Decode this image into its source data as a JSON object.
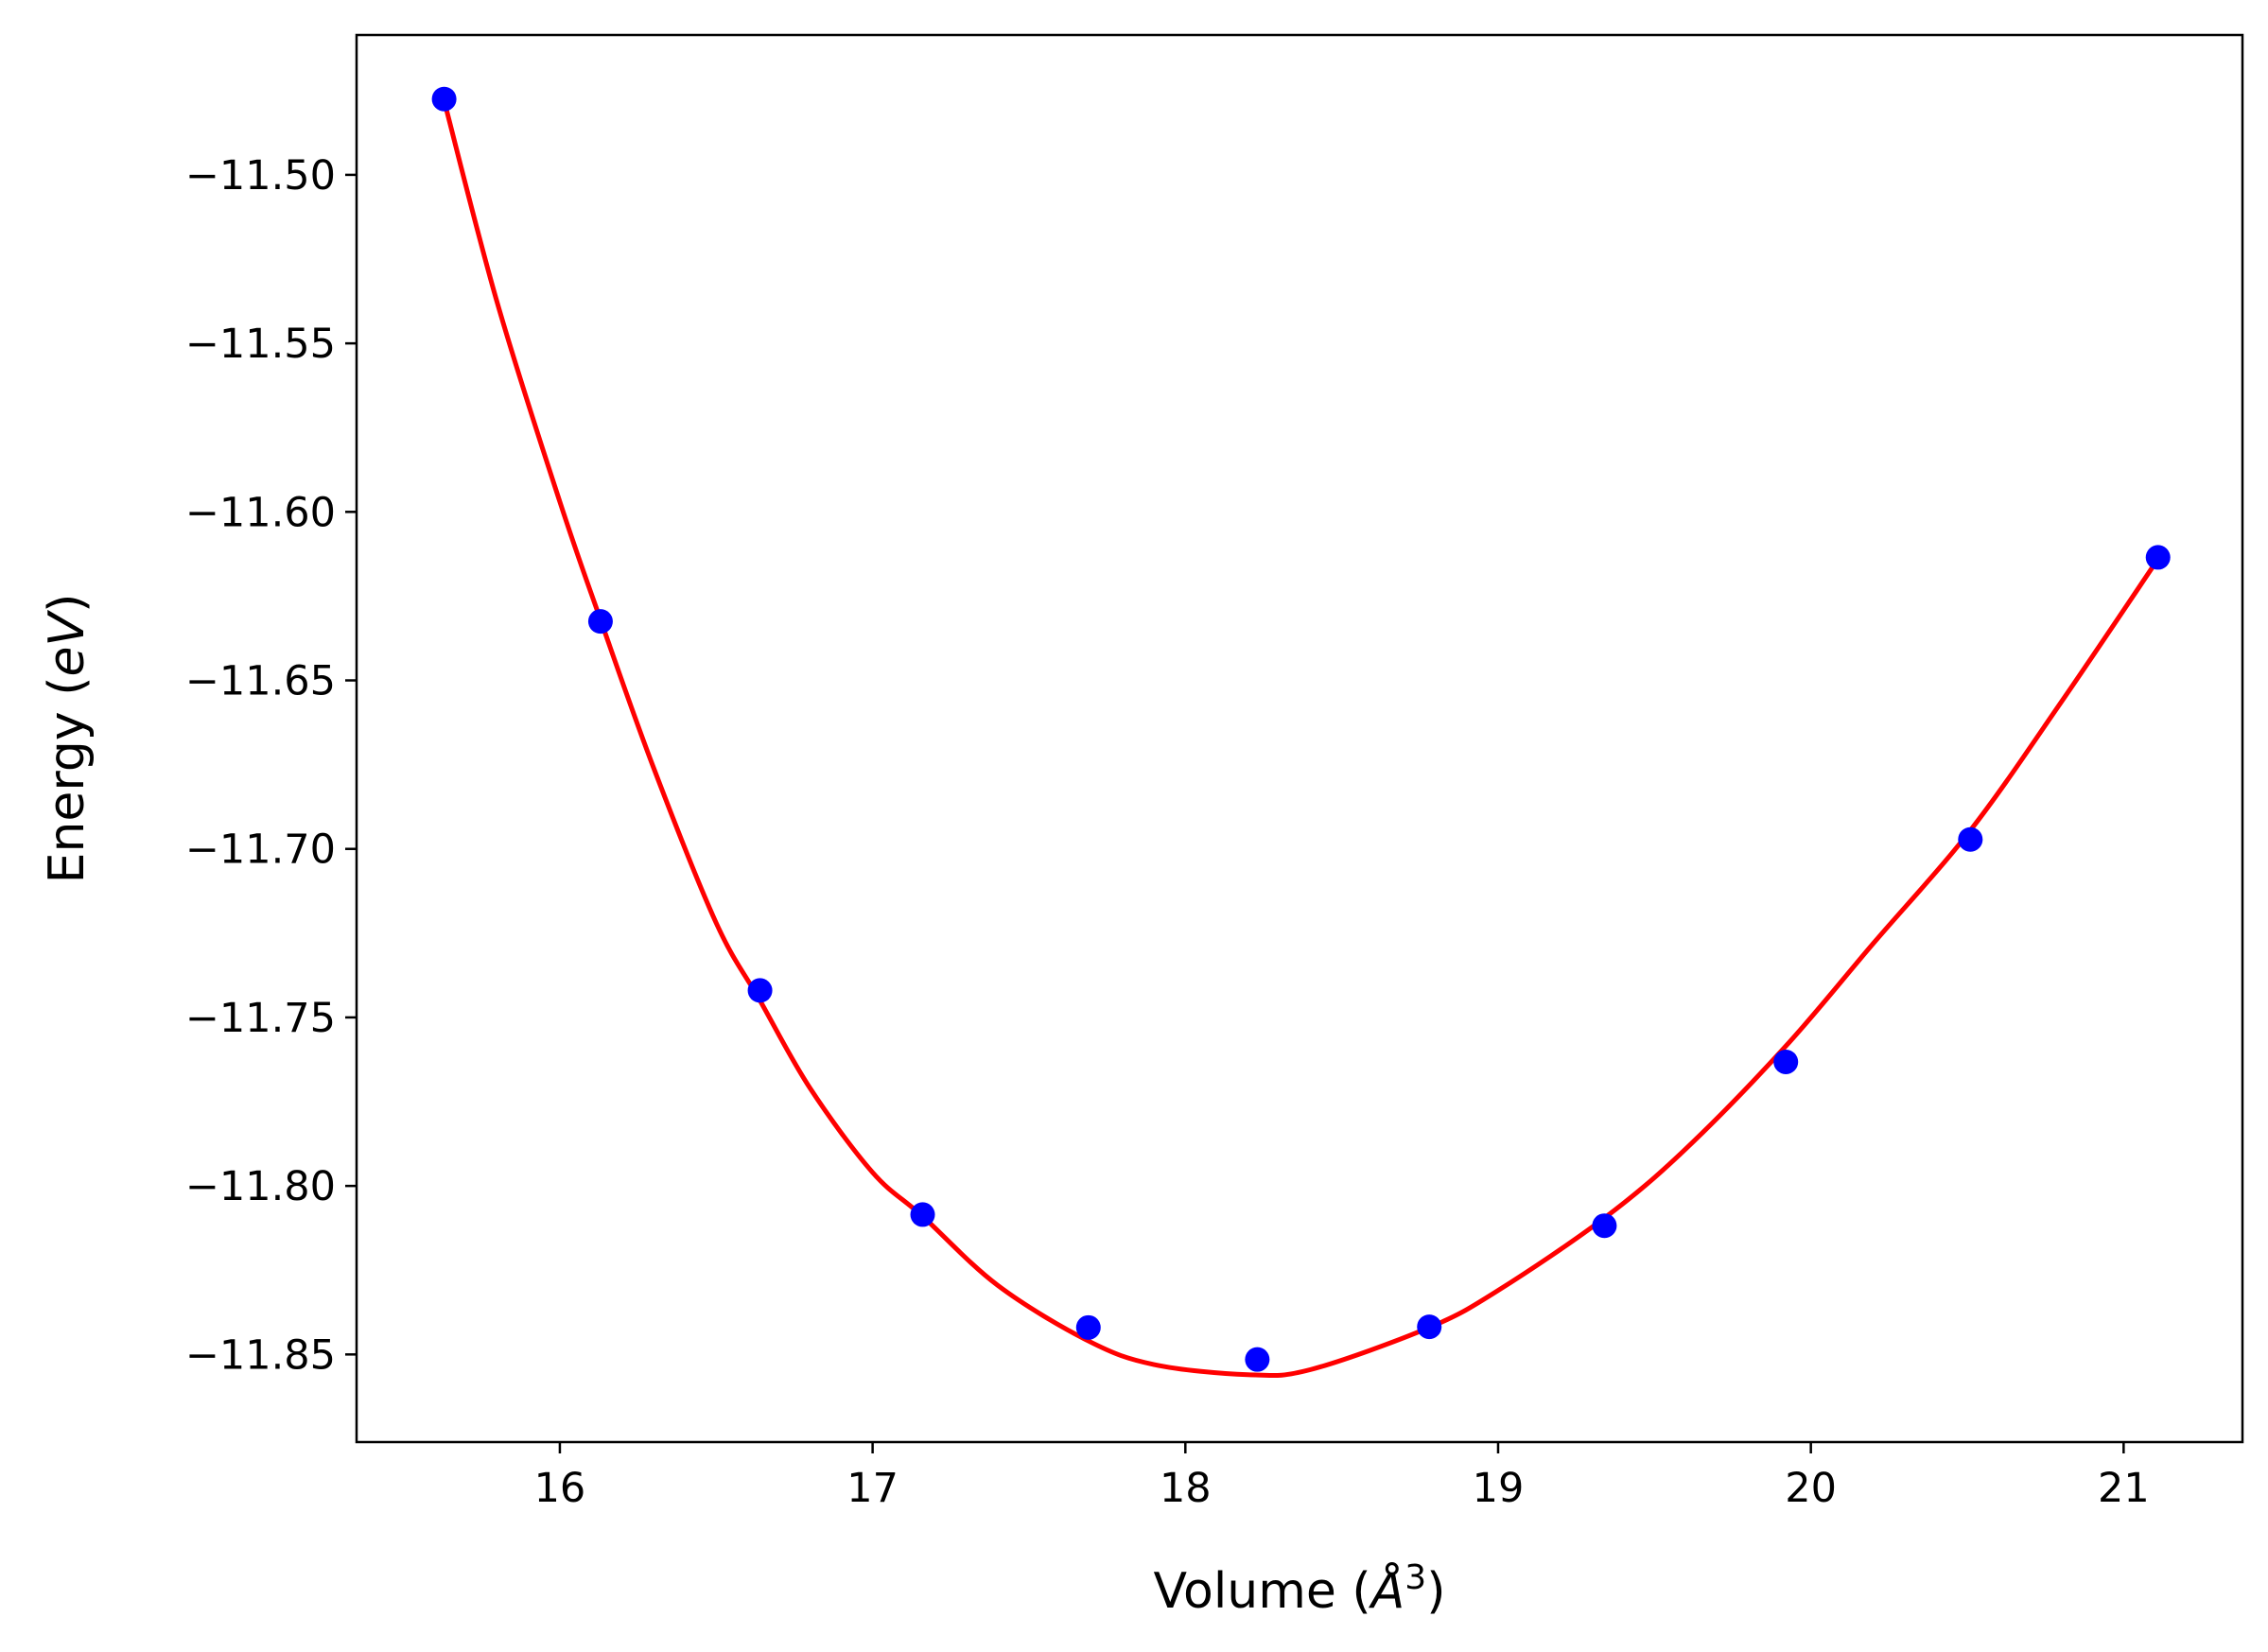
{
  "chart_data": {
    "type": "scatter",
    "title": "",
    "xlabel": {
      "prefix": "Volume (",
      "var": "Å",
      "sup": "3",
      "suffix": ")"
    },
    "ylabel": {
      "prefix": "Energy (",
      "var": "eV",
      "suffix": ")"
    },
    "xlim": [
      15.35,
      21.38
    ],
    "ylim": [
      -11.876,
      -11.4585
    ],
    "xticks": [
      16,
      17,
      18,
      19,
      20,
      21
    ],
    "xtick_labels": [
      "16",
      "17",
      "18",
      "19",
      "20",
      "21"
    ],
    "yticks": [
      -11.5,
      -11.55,
      -11.6,
      -11.65,
      -11.7,
      -11.75,
      -11.8,
      -11.85
    ],
    "ytick_labels": [
      "−11.50",
      "−11.55",
      "−11.60",
      "−11.65",
      "−11.70",
      "−11.75",
      "−11.80",
      "−11.85"
    ],
    "grid": false,
    "legend": "none",
    "series": [
      {
        "kind": "points",
        "color": "#0000ff",
        "x": [
          15.63,
          16.13,
          16.64,
          17.16,
          17.69,
          18.23,
          18.78,
          19.34,
          19.92,
          20.51,
          21.11
        ],
        "y": [
          -11.4775,
          -11.6325,
          -11.742,
          -11.8085,
          -11.842,
          -11.8515,
          -11.8418,
          -11.8118,
          -11.7632,
          -11.6972,
          -11.6135
        ]
      },
      {
        "kind": "fit-curve",
        "color": "#ff0000",
        "x": [
          15.63,
          15.8,
          16.0,
          16.13,
          16.3,
          16.5,
          16.64,
          16.8,
          17.0,
          17.16,
          17.4,
          17.69,
          17.9,
          18.2,
          18.4,
          18.78,
          19.0,
          19.34,
          19.6,
          19.92,
          20.2,
          20.51,
          20.8,
          21.11
        ],
        "y": [
          -11.478,
          -11.538,
          -11.597,
          -11.632,
          -11.676,
          -11.722,
          -11.745,
          -11.771,
          -11.796,
          -11.809,
          -11.8295,
          -11.846,
          -11.853,
          -11.856,
          -11.8545,
          -11.842,
          -11.831,
          -11.8095,
          -11.789,
          -11.7585,
          -11.728,
          -11.6945,
          -11.6565,
          -11.614
        ]
      }
    ]
  }
}
